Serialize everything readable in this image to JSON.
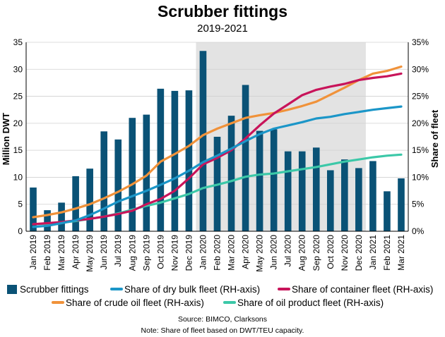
{
  "chart_data": {
    "type": "bar",
    "title": "Scrubber fittings",
    "subtitle": "2019-2021",
    "ylabel_left": "Million DWT",
    "ylabel_right": "Share of fleet",
    "ylim_left": [
      0,
      35
    ],
    "yticks_left": [
      "0",
      "5",
      "10",
      "15",
      "20",
      "25",
      "30",
      "35"
    ],
    "ylim_right": [
      0,
      35
    ],
    "yticks_right": [
      "0%",
      "5%",
      "10%",
      "15%",
      "20%",
      "25%",
      "30%",
      "35%"
    ],
    "categories": [
      "Jan 2019",
      "Feb 2019",
      "Mar 2019",
      "Apr 2019",
      "May 2019",
      "Jun 2019",
      "Jul 2019",
      "Aug 2019",
      "Sep 2019",
      "Oct 2019",
      "Nov 2019",
      "Dec 2019",
      "Jan 2020",
      "Feb 2020",
      "Mar 2020",
      "Apr 2020",
      "May 2020",
      "Jun 2020",
      "Jul 2020",
      "Aug 2020",
      "Sep 2020",
      "Oct 2020",
      "Nov 2020",
      "Dec 2020",
      "Jan 2021",
      "Feb 2021",
      "Mar 2021"
    ],
    "shaded_range": [
      "Jan 2020",
      "Dec 2020"
    ],
    "bar_series": {
      "name": "Scrubber fittings",
      "color": "#0a5276",
      "values": [
        8.1,
        3.9,
        5.3,
        10.2,
        11.6,
        18.5,
        17.0,
        21.0,
        21.6,
        26.4,
        26.0,
        26.1,
        33.4,
        17.5,
        21.4,
        27.1,
        18.6,
        18.9,
        14.8,
        14.8,
        15.5,
        11.3,
        13.3,
        11.7,
        13.0,
        7.4,
        9.8
      ]
    },
    "line_series": [
      {
        "name": "Share of dry bulk fleet (RH-axis)",
        "color": "#1b96c8",
        "values": [
          0.8,
          1.0,
          1.5,
          2.0,
          3.0,
          4.2,
          5.5,
          6.5,
          7.5,
          8.6,
          9.8,
          11.2,
          12.8,
          14.0,
          15.3,
          16.7,
          18.0,
          19.0,
          19.6,
          20.2,
          20.9,
          21.2,
          21.7,
          22.1,
          22.5,
          22.8,
          23.1
        ]
      },
      {
        "name": "Share of container fleet (RH-axis)",
        "color": "#c8145a",
        "values": [
          1.3,
          1.5,
          1.7,
          2.0,
          2.3,
          2.7,
          3.2,
          3.8,
          5.0,
          6.0,
          7.5,
          9.8,
          12.4,
          13.6,
          15.0,
          17.2,
          19.6,
          21.8,
          23.5,
          25.2,
          26.2,
          26.8,
          27.3,
          28.0,
          28.4,
          28.7,
          29.2
        ]
      },
      {
        "name": "Share of crude oil fleet (RH-axis)",
        "color": "#f0923a",
        "values": [
          2.6,
          3.0,
          3.5,
          4.2,
          5.0,
          6.1,
          7.3,
          8.7,
          10.3,
          12.9,
          14.3,
          15.8,
          17.8,
          19.0,
          20.0,
          21.0,
          21.5,
          21.9,
          22.5,
          23.2,
          24.0,
          25.3,
          26.6,
          28.0,
          29.2,
          29.7,
          30.5
        ]
      },
      {
        "name": "Share of oil product fleet (RH-axis)",
        "color": "#3cc8a8",
        "values": [
          1.3,
          1.4,
          1.6,
          1.9,
          2.3,
          2.7,
          3.3,
          4.0,
          4.7,
          5.3,
          6.1,
          6.9,
          8.0,
          8.6,
          9.3,
          10.1,
          10.5,
          10.7,
          11.1,
          11.5,
          11.9,
          12.4,
          12.9,
          13.3,
          13.7,
          14.0,
          14.2
        ]
      }
    ],
    "source": "Source: BIMCO, Clarksons",
    "note": "Note: Share of fleet based on DWT/TEU capacity."
  }
}
